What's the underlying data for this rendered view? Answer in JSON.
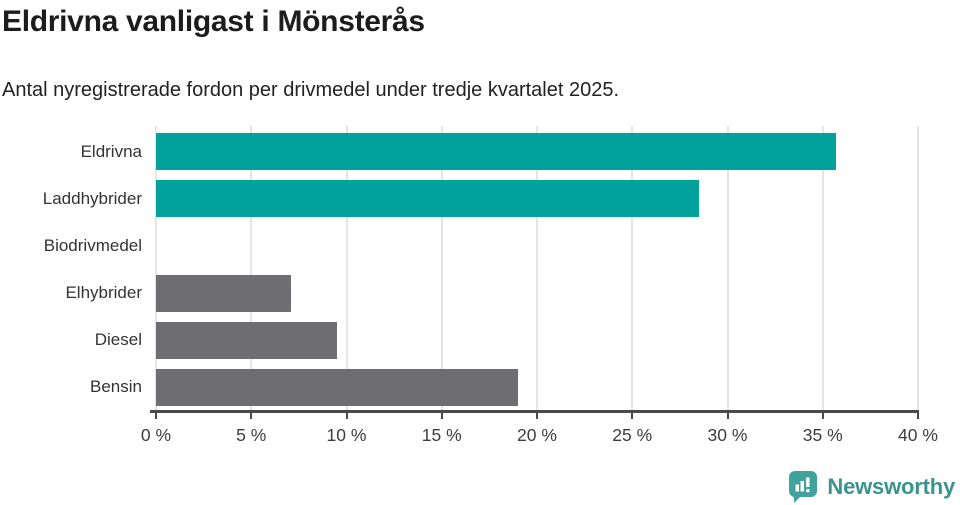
{
  "header": {
    "title": "Eldrivna vanligast i Mönsterås",
    "subtitle": "Antal nyregistrerade fordon per drivmedel under tredje kvartalet 2025."
  },
  "chart_data": {
    "type": "bar",
    "orientation": "horizontal",
    "title": "Eldrivna vanligast i Mönsterås",
    "subtitle": "Antal nyregistrerade fordon per drivmedel under tredje kvartalet 2025.",
    "categories": [
      "Eldrivna",
      "Laddhybrider",
      "Biodrivmedel",
      "Elhybrider",
      "Diesel",
      "Bensin"
    ],
    "values": [
      35.7,
      28.5,
      0,
      7.1,
      9.5,
      19.0
    ],
    "unit": "%",
    "colors": [
      "#00a29b",
      "#00a29b",
      "#6d6d72",
      "#6d6d72",
      "#6d6d72",
      "#6d6d72"
    ],
    "xlim": [
      0,
      40
    ],
    "xticks": [
      0,
      5,
      10,
      15,
      20,
      25,
      30,
      35,
      40
    ],
    "xtick_labels": [
      "0 %",
      "5 %",
      "10 %",
      "15 %",
      "20 %",
      "25 %",
      "30 %",
      "35 %",
      "40 %"
    ],
    "xlabel": "",
    "ylabel": "",
    "grid": "vertical",
    "legend": false
  },
  "footer": {
    "brand": "Newsworthy",
    "logo_icon": "bar-chart-speech-bubble-icon"
  },
  "colors": {
    "bar_teal": "#00a29b",
    "bar_gray": "#6d6d72",
    "axis": "#4a4a4a",
    "gridline": "#e4e4e4",
    "title_text": "#1c1c1c",
    "brand_text": "#3a938f",
    "logo_fill": "#3fa29d"
  }
}
